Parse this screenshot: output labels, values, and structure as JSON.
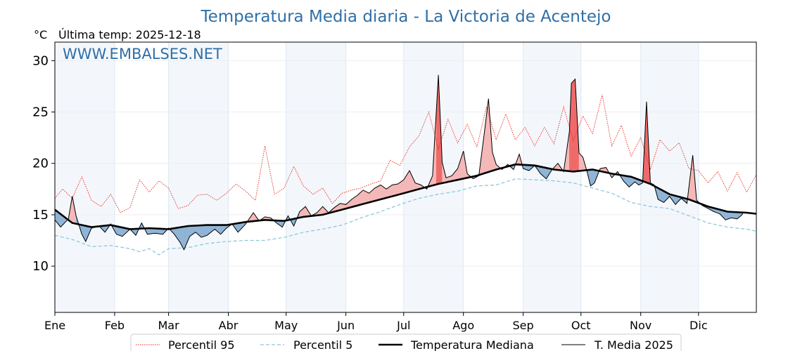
{
  "chart_data": {
    "type": "line",
    "title": "Temperatura Media diaria - La Victoria de Acentejo",
    "unit": "°C",
    "last_update": "Última temp: 2025-12-18",
    "watermark": "WWW.EMBALSES.NET",
    "xlim": [
      1,
      365
    ],
    "ylim": [
      5.5,
      31.8
    ],
    "yticks": [
      10,
      15,
      20,
      25,
      30
    ],
    "grid": true,
    "legend_position": "bottom",
    "months": [
      {
        "label": "Ene",
        "day": 1
      },
      {
        "label": "Feb",
        "day": 32
      },
      {
        "label": "Mar",
        "day": 60
      },
      {
        "label": "Abr",
        "day": 91
      },
      {
        "label": "May",
        "day": 121
      },
      {
        "label": "Jun",
        "day": 152
      },
      {
        "label": "Jul",
        "day": 182
      },
      {
        "label": "Ago",
        "day": 213
      },
      {
        "label": "Sep",
        "day": 244
      },
      {
        "label": "Oct",
        "day": 274
      },
      {
        "label": "Nov",
        "day": 305
      },
      {
        "label": "Dic",
        "day": 335
      }
    ],
    "colors": {
      "p95": "#e8261b",
      "p5": "#8fc8dc",
      "median": "#000000",
      "current": "#000000",
      "above_light": "#f4b8b8",
      "above_strong": "#ee6a6a",
      "below_light": "#8fb4d6",
      "below_strong": "#2b67a5",
      "band": "#f3f7fc"
    },
    "series": [
      {
        "name": "Percentil 95",
        "style": "dotted-red",
        "points": [
          [
            1,
            16.6
          ],
          [
            5,
            17.5
          ],
          [
            10,
            16.6
          ],
          [
            15,
            18.7
          ],
          [
            20,
            16.4
          ],
          [
            25,
            15.8
          ],
          [
            30,
            17.0
          ],
          [
            35,
            15.2
          ],
          [
            40,
            15.7
          ],
          [
            45,
            18.4
          ],
          [
            50,
            17.2
          ],
          [
            55,
            18.3
          ],
          [
            60,
            17.6
          ],
          [
            65,
            15.6
          ],
          [
            70,
            15.9
          ],
          [
            75,
            16.9
          ],
          [
            80,
            17.0
          ],
          [
            85,
            16.4
          ],
          [
            90,
            17.1
          ],
          [
            95,
            18.0
          ],
          [
            100,
            17.3
          ],
          [
            105,
            16.4
          ],
          [
            110,
            21.7
          ],
          [
            115,
            17.0
          ],
          [
            120,
            17.6
          ],
          [
            125,
            19.7
          ],
          [
            130,
            17.8
          ],
          [
            135,
            17.0
          ],
          [
            140,
            17.6
          ],
          [
            145,
            16.1
          ],
          [
            150,
            17.1
          ],
          [
            155,
            17.4
          ],
          [
            160,
            17.6
          ],
          [
            165,
            18.0
          ],
          [
            170,
            18.3
          ],
          [
            175,
            20.3
          ],
          [
            180,
            19.8
          ],
          [
            185,
            21.6
          ],
          [
            190,
            22.7
          ],
          [
            195,
            25.0
          ],
          [
            200,
            21.4
          ],
          [
            205,
            24.3
          ],
          [
            210,
            22.0
          ],
          [
            215,
            23.8
          ],
          [
            220,
            21.6
          ],
          [
            225,
            25.5
          ],
          [
            230,
            22.3
          ],
          [
            235,
            24.8
          ],
          [
            240,
            22.3
          ],
          [
            245,
            23.5
          ],
          [
            250,
            21.7
          ],
          [
            255,
            23.5
          ],
          [
            260,
            21.9
          ],
          [
            265,
            25.5
          ],
          [
            270,
            22.2
          ],
          [
            275,
            24.6
          ],
          [
            280,
            22.9
          ],
          [
            285,
            26.7
          ],
          [
            290,
            21.7
          ],
          [
            295,
            23.7
          ],
          [
            300,
            20.7
          ],
          [
            305,
            22.5
          ],
          [
            310,
            19.4
          ],
          [
            315,
            22.3
          ],
          [
            320,
            21.2
          ],
          [
            325,
            22.0
          ],
          [
            330,
            19.5
          ],
          [
            335,
            19.3
          ],
          [
            340,
            18.1
          ],
          [
            345,
            19.2
          ],
          [
            350,
            17.3
          ],
          [
            355,
            19.1
          ],
          [
            360,
            17.2
          ],
          [
            365,
            18.9
          ]
        ]
      },
      {
        "name": "Percentil 5",
        "style": "dashed-lightblue",
        "points": [
          [
            1,
            13.0
          ],
          [
            10,
            12.6
          ],
          [
            20,
            11.9
          ],
          [
            30,
            12.0
          ],
          [
            40,
            11.7
          ],
          [
            45,
            11.4
          ],
          [
            50,
            11.7
          ],
          [
            55,
            11.1
          ],
          [
            60,
            11.7
          ],
          [
            70,
            11.8
          ],
          [
            80,
            12.2
          ],
          [
            90,
            12.4
          ],
          [
            100,
            12.5
          ],
          [
            110,
            12.5
          ],
          [
            120,
            12.8
          ],
          [
            130,
            13.3
          ],
          [
            140,
            13.6
          ],
          [
            150,
            14.0
          ],
          [
            160,
            14.7
          ],
          [
            170,
            15.3
          ],
          [
            180,
            16.0
          ],
          [
            190,
            16.6
          ],
          [
            200,
            17.0
          ],
          [
            210,
            17.3
          ],
          [
            220,
            17.8
          ],
          [
            230,
            17.9
          ],
          [
            240,
            18.5
          ],
          [
            250,
            18.4
          ],
          [
            260,
            18.3
          ],
          [
            270,
            18.1
          ],
          [
            280,
            17.6
          ],
          [
            290,
            17.1
          ],
          [
            300,
            16.2
          ],
          [
            310,
            15.8
          ],
          [
            320,
            15.6
          ],
          [
            330,
            14.9
          ],
          [
            340,
            14.2
          ],
          [
            350,
            13.8
          ],
          [
            360,
            13.6
          ],
          [
            365,
            13.4
          ]
        ]
      },
      {
        "name": "Temperatura Mediana",
        "style": "solid-thick",
        "points": [
          [
            1,
            15.5
          ],
          [
            10,
            14.2
          ],
          [
            20,
            13.8
          ],
          [
            30,
            14.0
          ],
          [
            40,
            13.6
          ],
          [
            50,
            13.7
          ],
          [
            60,
            13.6
          ],
          [
            70,
            13.9
          ],
          [
            80,
            14.0
          ],
          [
            90,
            14.0
          ],
          [
            100,
            14.3
          ],
          [
            110,
            14.5
          ],
          [
            120,
            14.4
          ],
          [
            130,
            14.8
          ],
          [
            140,
            15.0
          ],
          [
            150,
            15.5
          ],
          [
            160,
            16.0
          ],
          [
            170,
            16.5
          ],
          [
            180,
            17.0
          ],
          [
            190,
            17.5
          ],
          [
            200,
            18.0
          ],
          [
            210,
            18.4
          ],
          [
            220,
            18.8
          ],
          [
            230,
            19.4
          ],
          [
            240,
            19.9
          ],
          [
            250,
            19.8
          ],
          [
            260,
            19.4
          ],
          [
            270,
            19.2
          ],
          [
            280,
            19.4
          ],
          [
            290,
            19.0
          ],
          [
            300,
            18.7
          ],
          [
            310,
            18.0
          ],
          [
            320,
            17.0
          ],
          [
            330,
            16.5
          ],
          [
            340,
            15.8
          ],
          [
            350,
            15.3
          ],
          [
            360,
            15.2
          ],
          [
            365,
            15.1
          ]
        ]
      },
      {
        "name": "T. Media 2025",
        "style": "solid-thin",
        "points": [
          [
            1,
            14.5
          ],
          [
            4,
            13.8
          ],
          [
            8,
            14.6
          ],
          [
            10,
            16.8
          ],
          [
            12,
            14.9
          ],
          [
            15,
            13.1
          ],
          [
            17,
            12.4
          ],
          [
            20,
            13.7
          ],
          [
            24,
            13.9
          ],
          [
            27,
            13.3
          ],
          [
            30,
            14.1
          ],
          [
            33,
            13.1
          ],
          [
            36,
            12.9
          ],
          [
            40,
            13.6
          ],
          [
            43,
            13.0
          ],
          [
            46,
            14.2
          ],
          [
            49,
            13.1
          ],
          [
            53,
            13.2
          ],
          [
            57,
            13.1
          ],
          [
            60,
            13.7
          ],
          [
            63,
            13.1
          ],
          [
            66,
            12.3
          ],
          [
            68,
            11.6
          ],
          [
            71,
            12.9
          ],
          [
            74,
            13.3
          ],
          [
            77,
            12.8
          ],
          [
            80,
            13.0
          ],
          [
            84,
            13.6
          ],
          [
            87,
            13.1
          ],
          [
            90,
            13.7
          ],
          [
            93,
            14.1
          ],
          [
            96,
            13.3
          ],
          [
            100,
            14.1
          ],
          [
            104,
            15.2
          ],
          [
            107,
            14.4
          ],
          [
            110,
            14.8
          ],
          [
            113,
            14.7
          ],
          [
            116,
            14.2
          ],
          [
            119,
            13.8
          ],
          [
            122,
            14.9
          ],
          [
            125,
            13.9
          ],
          [
            128,
            15.3
          ],
          [
            131,
            15.8
          ],
          [
            134,
            14.9
          ],
          [
            137,
            15.2
          ],
          [
            140,
            15.8
          ],
          [
            143,
            15.2
          ],
          [
            146,
            15.7
          ],
          [
            149,
            16.1
          ],
          [
            152,
            16.0
          ],
          [
            155,
            16.5
          ],
          [
            158,
            16.9
          ],
          [
            161,
            17.4
          ],
          [
            164,
            17.1
          ],
          [
            167,
            17.6
          ],
          [
            170,
            17.9
          ],
          [
            173,
            17.5
          ],
          [
            176,
            17.9
          ],
          [
            179,
            18.0
          ],
          [
            182,
            18.4
          ],
          [
            185,
            19.3
          ],
          [
            188,
            18.1
          ],
          [
            191,
            17.9
          ],
          [
            194,
            17.5
          ],
          [
            197,
            18.8
          ],
          [
            199,
            25.3
          ],
          [
            200,
            28.6
          ],
          [
            202,
            20.1
          ],
          [
            204,
            18.6
          ],
          [
            207,
            18.8
          ],
          [
            210,
            19.5
          ],
          [
            213,
            21.2
          ],
          [
            215,
            19.0
          ],
          [
            218,
            18.5
          ],
          [
            221,
            18.8
          ],
          [
            224,
            23.2
          ],
          [
            226,
            26.3
          ],
          [
            228,
            21.1
          ],
          [
            230,
            19.9
          ],
          [
            233,
            19.4
          ],
          [
            236,
            19.9
          ],
          [
            239,
            19.4
          ],
          [
            242,
            20.9
          ],
          [
            244,
            19.5
          ],
          [
            247,
            19.3
          ],
          [
            250,
            19.8
          ],
          [
            253,
            19.0
          ],
          [
            256,
            18.5
          ],
          [
            259,
            19.4
          ],
          [
            262,
            20.0
          ],
          [
            265,
            19.2
          ],
          [
            268,
            23.1
          ],
          [
            269,
            27.8
          ],
          [
            271,
            28.2
          ],
          [
            273,
            21.0
          ],
          [
            275,
            20.6
          ],
          [
            277,
            19.3
          ],
          [
            279,
            17.8
          ],
          [
            281,
            18.1
          ],
          [
            284,
            19.5
          ],
          [
            287,
            19.6
          ],
          [
            290,
            18.6
          ],
          [
            293,
            19.2
          ],
          [
            296,
            18.3
          ],
          [
            299,
            17.7
          ],
          [
            302,
            18.2
          ],
          [
            304,
            17.9
          ],
          [
            306,
            18.1
          ],
          [
            308,
            26.0
          ],
          [
            310,
            18.1
          ],
          [
            312,
            17.9
          ],
          [
            314,
            16.5
          ],
          [
            317,
            16.2
          ],
          [
            320,
            16.8
          ],
          [
            323,
            16.0
          ],
          [
            326,
            16.6
          ],
          [
            329,
            16.1
          ],
          [
            332,
            20.8
          ],
          [
            334,
            16.4
          ],
          [
            337,
            15.9
          ],
          [
            340,
            15.6
          ],
          [
            343,
            15.3
          ],
          [
            346,
            15.1
          ],
          [
            349,
            14.5
          ],
          [
            352,
            14.7
          ],
          [
            355,
            14.6
          ],
          [
            357,
            14.9
          ],
          [
            358,
            15.1
          ]
        ]
      }
    ]
  },
  "legend": {
    "items": [
      {
        "label": "Percentil 95"
      },
      {
        "label": "Percentil 5"
      },
      {
        "label": "Temperatura Mediana"
      },
      {
        "label": "T. Media 2025"
      }
    ]
  }
}
